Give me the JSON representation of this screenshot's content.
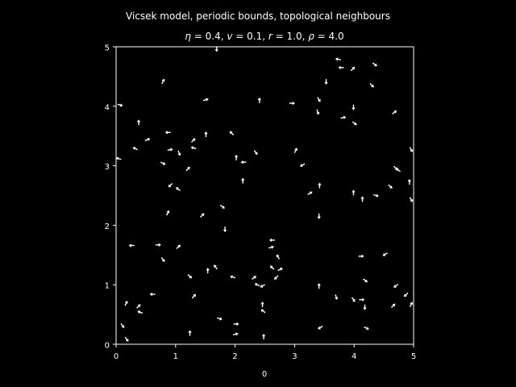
{
  "chart_data": {
    "type": "quiver",
    "title": "Vicsek model, periodic bounds, topological neighbours",
    "subtitle": "η = 0.4, v = 0.1, r = 1.0, ρ = 4.0",
    "subtitle_parts": [
      {
        "t": "η",
        "i": true
      },
      {
        "t": " = 0.4, ",
        "i": false
      },
      {
        "t": "v",
        "i": true
      },
      {
        "t": " = 0.1, ",
        "i": false
      },
      {
        "t": "r",
        "i": true
      },
      {
        "t": " = 1.0, ",
        "i": false
      },
      {
        "t": "ρ",
        "i": true
      },
      {
        "t": " = 4.0",
        "i": false
      }
    ],
    "xlabel": "0",
    "ylabel": "",
    "xlim": [
      0,
      5
    ],
    "ylim": [
      0,
      5
    ],
    "xticks": [
      0,
      1,
      2,
      3,
      4,
      5
    ],
    "yticks": [
      0,
      1,
      2,
      3,
      4,
      5
    ],
    "grid": false,
    "background": "#000000",
    "foreground": "#ffffff",
    "arrows": [
      [
        1.69,
        4.96,
        0,
        -1
      ],
      [
        3.73,
        4.79,
        -1,
        0.2
      ],
      [
        4.35,
        4.7,
        1,
        -0.7
      ],
      [
        3.78,
        4.65,
        -1,
        0
      ],
      [
        3.98,
        4.63,
        0.7,
        0.7
      ],
      [
        3.53,
        4.41,
        0,
        -1
      ],
      [
        4.3,
        4.35,
        0.7,
        -0.7
      ],
      [
        0.79,
        4.42,
        0.5,
        1
      ],
      [
        0.07,
        4.02,
        1,
        -0.3
      ],
      [
        1.51,
        4.11,
        1,
        0.3
      ],
      [
        2.41,
        4.1,
        0,
        1
      ],
      [
        2.96,
        4.05,
        1,
        0
      ],
      [
        3.41,
        4.11,
        0.5,
        -0.9
      ],
      [
        3.99,
        3.98,
        0,
        -1
      ],
      [
        4.68,
        3.9,
        0.8,
        0.6
      ],
      [
        3.39,
        3.9,
        0.3,
        -1
      ],
      [
        3.82,
        3.81,
        1,
        0.2
      ],
      [
        4.01,
        3.71,
        0.8,
        -0.6
      ],
      [
        0.38,
        3.73,
        0,
        1
      ],
      [
        0.53,
        3.44,
        1,
        0.4
      ],
      [
        0.87,
        3.56,
        -1,
        0
      ],
      [
        1.3,
        3.43,
        0.7,
        0.7
      ],
      [
        1.51,
        3.53,
        0,
        1
      ],
      [
        1.94,
        3.55,
        -0.7,
        0.7
      ],
      [
        3.02,
        3.26,
        0.5,
        1
      ],
      [
        0.32,
        3.29,
        -1,
        0.5
      ],
      [
        0.91,
        3.27,
        1,
        0.2
      ],
      [
        1.06,
        3.21,
        0.4,
        -1
      ],
      [
        1.3,
        3.3,
        -1,
        0.3
      ],
      [
        2.02,
        3.14,
        0,
        1
      ],
      [
        2.35,
        3.22,
        0.6,
        -0.8
      ],
      [
        0.04,
        3.12,
        -1,
        0.3
      ],
      [
        0.79,
        3.04,
        1,
        -0.5
      ],
      [
        1.21,
        2.95,
        0.7,
        0.7
      ],
      [
        2.14,
        3.06,
        -1,
        0
      ],
      [
        3.13,
        3.01,
        -1,
        -0.5
      ],
      [
        4.7,
        2.96,
        0.7,
        -0.7
      ],
      [
        4.74,
        2.93,
        -0.8,
        0.6
      ],
      [
        4.96,
        3.27,
        0.5,
        -0.9
      ],
      [
        2.13,
        2.75,
        0,
        1
      ],
      [
        0.91,
        2.67,
        -0.7,
        -0.7
      ],
      [
        1.04,
        2.61,
        -0.8,
        0.6
      ],
      [
        4.93,
        2.73,
        0,
        1
      ],
      [
        3.26,
        2.54,
        1,
        0.6
      ],
      [
        3.42,
        2.67,
        0,
        1
      ],
      [
        3.99,
        2.55,
        0,
        1
      ],
      [
        4.14,
        2.44,
        0,
        1
      ],
      [
        4.37,
        2.5,
        1,
        -0.3
      ],
      [
        4.61,
        2.65,
        0.7,
        -0.7
      ],
      [
        4.96,
        2.43,
        0.5,
        -0.9
      ],
      [
        0.87,
        2.21,
        0.5,
        1
      ],
      [
        1.45,
        2.17,
        0.7,
        0.7
      ],
      [
        1.79,
        2.31,
        0.8,
        -0.6
      ],
      [
        1.83,
        1.93,
        0,
        -1
      ],
      [
        3.41,
        2.15,
        0,
        -1
      ],
      [
        0.26,
        1.66,
        -1,
        0
      ],
      [
        0.71,
        1.67,
        1,
        0
      ],
      [
        1.05,
        1.64,
        0.7,
        0.7
      ],
      [
        0.79,
        1.42,
        0.6,
        -0.8
      ],
      [
        2.62,
        1.75,
        -1,
        0
      ],
      [
        2.61,
        1.63,
        1,
        0.3
      ],
      [
        2.72,
        1.47,
        -0.5,
        0.9
      ],
      [
        4.12,
        1.48,
        1,
        0
      ],
      [
        4.52,
        1.51,
        -0.9,
        -0.5
      ],
      [
        1.24,
        1.14,
        0.7,
        -0.7
      ],
      [
        1.54,
        1.24,
        0,
        1
      ],
      [
        1.67,
        1.3,
        -0.6,
        0.8
      ],
      [
        1.96,
        1.13,
        -1,
        0.3
      ],
      [
        2.32,
        1.12,
        0.8,
        0.6
      ],
      [
        2.62,
        1.29,
        -0.7,
        0.7
      ],
      [
        2.76,
        1.26,
        1,
        0.5
      ],
      [
        2.46,
        0.98,
        -0.9,
        -0.5
      ],
      [
        2.37,
        1.0,
        -1,
        0.5
      ],
      [
        2.69,
        1.12,
        -0.7,
        -0.7
      ],
      [
        4.19,
        1.07,
        0.8,
        -0.6
      ],
      [
        0.61,
        0.84,
        -1,
        0
      ],
      [
        1.31,
        0.81,
        0.7,
        0.8
      ],
      [
        3.41,
        0.98,
        0,
        1
      ],
      [
        3.7,
        0.79,
        0.3,
        -1
      ],
      [
        3.99,
        0.75,
        0.6,
        -0.8
      ],
      [
        4.13,
        0.75,
        1,
        0
      ],
      [
        4.18,
        0.62,
        0,
        -1
      ],
      [
        4.7,
        0.98,
        -0.8,
        -0.6
      ],
      [
        4.87,
        0.83,
        -0.7,
        -0.7
      ],
      [
        4.96,
        0.67,
        0.5,
        1
      ],
      [
        0.17,
        0.69,
        0.5,
        1
      ],
      [
        0.38,
        0.64,
        0.7,
        0.7
      ],
      [
        0.4,
        0.54,
        -1,
        0.4
      ],
      [
        1.74,
        0.43,
        1,
        -0.3
      ],
      [
        2.02,
        0.34,
        1,
        0
      ],
      [
        2.46,
        0.67,
        0,
        1
      ],
      [
        2.47,
        0.56,
        -0.8,
        0.6
      ],
      [
        4.66,
        0.65,
        0.7,
        0.7
      ],
      [
        0.11,
        0.31,
        0.6,
        -0.8
      ],
      [
        0.18,
        0.08,
        0.6,
        -0.8
      ],
      [
        1.24,
        0.19,
        0,
        1
      ],
      [
        2.01,
        0.17,
        1,
        0.2
      ],
      [
        2.48,
        0.13,
        0,
        1
      ],
      [
        3.43,
        0.28,
        -0.8,
        -0.5
      ],
      [
        4.21,
        0.27,
        1,
        -0.5
      ]
    ]
  }
}
